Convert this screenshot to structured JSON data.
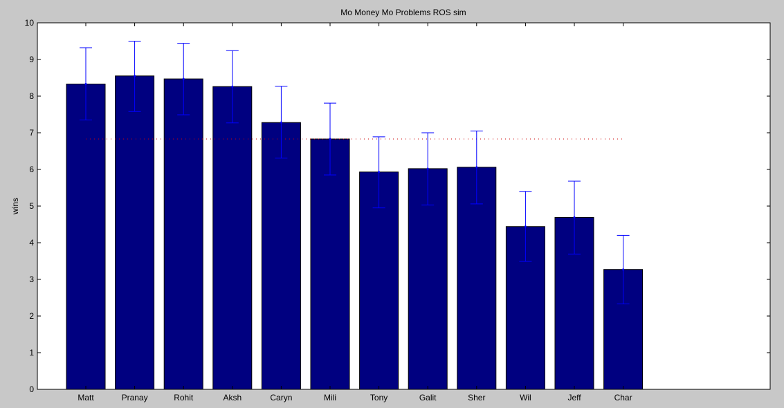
{
  "chart_data": {
    "type": "bar",
    "title": "Mo Money Mo Problems ROS sim",
    "xlabel": "",
    "ylabel": "wins",
    "ylim": [
      0,
      10
    ],
    "yticks": [
      "0",
      "1",
      "2",
      "3",
      "4",
      "5",
      "6",
      "7",
      "8",
      "9",
      "10"
    ],
    "grid": false,
    "legend": "none",
    "categories": [
      "Matt",
      "Pranay",
      "Rohit",
      "Aksh",
      "Caryn",
      "Mili",
      "Tony",
      "Galit",
      "Sher",
      "Wil",
      "Jeff",
      "Char"
    ],
    "values": [
      8.33,
      8.55,
      8.47,
      8.26,
      7.28,
      6.83,
      5.93,
      6.02,
      6.06,
      4.44,
      4.69,
      3.27
    ],
    "error_low": [
      7.35,
      7.58,
      7.49,
      7.27,
      6.31,
      5.85,
      4.95,
      5.03,
      5.06,
      3.49,
      3.69,
      2.33
    ],
    "error_high": [
      9.32,
      9.5,
      9.44,
      9.24,
      8.27,
      7.81,
      6.89,
      7.0,
      7.05,
      5.4,
      5.68,
      4.2
    ],
    "reference_line": 6.83,
    "colors": {
      "bar": "#000080",
      "error_bar": "#0000ff",
      "reference_line": "#cc0000",
      "axes_bg": "#ffffff",
      "figure_bg": "#c8c8c8"
    }
  }
}
